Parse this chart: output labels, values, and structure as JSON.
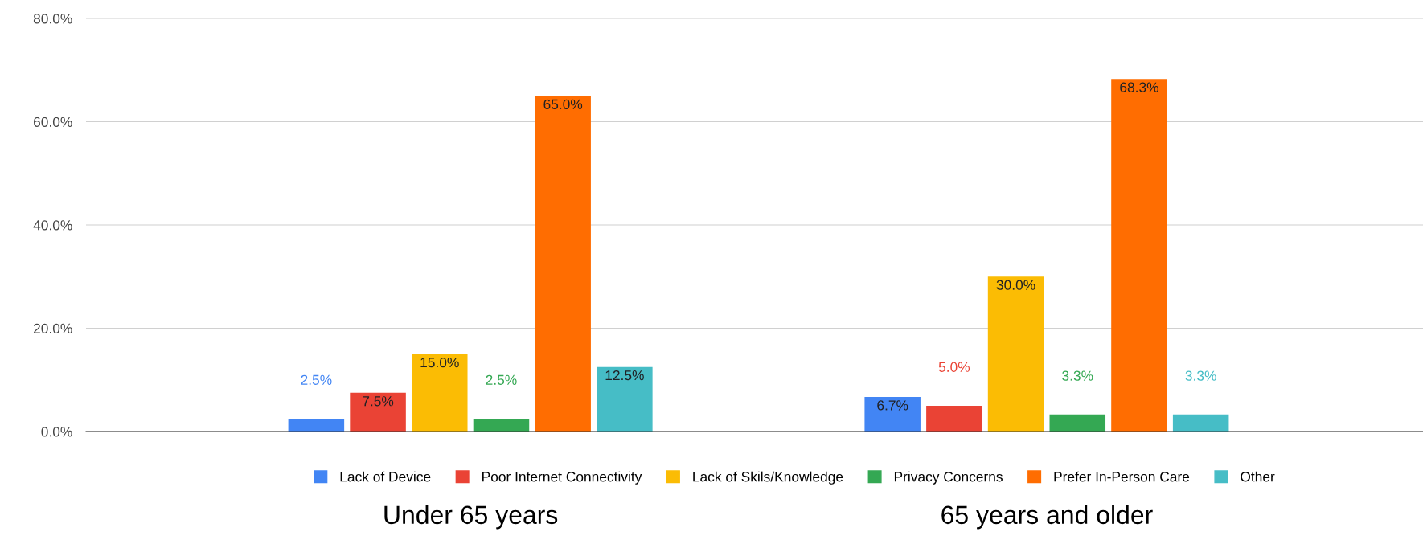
{
  "chart_data": {
    "type": "bar",
    "categories": [
      "Under 65 years",
      "65 years and older"
    ],
    "series": [
      {
        "name": "Lack of Device",
        "color": "#4285f4",
        "values": [
          2.5,
          6.7
        ],
        "value_labels": [
          "2.5%",
          "6.7%"
        ]
      },
      {
        "name": "Poor Internet Connectivity",
        "color": "#ea4335",
        "values": [
          7.5,
          5.0
        ],
        "value_labels": [
          "7.5%",
          "5.0%"
        ]
      },
      {
        "name": "Lack of Skils/Knowledge",
        "color": "#fbbc04",
        "values": [
          15.0,
          30.0
        ],
        "value_labels": [
          "15.0%",
          "30.0%"
        ]
      },
      {
        "name": "Privacy Concerns",
        "color": "#34a853",
        "values": [
          2.5,
          3.3
        ],
        "value_labels": [
          "2.5%",
          "3.3%"
        ]
      },
      {
        "name": "Prefer In-Person Care",
        "color": "#ff6d01",
        "values": [
          65.0,
          68.3
        ],
        "value_labels": [
          "65.0%",
          "68.3%"
        ]
      },
      {
        "name": "Other",
        "color": "#46bdc6",
        "values": [
          12.5,
          3.3
        ],
        "value_labels": [
          "12.5%",
          "3.3%"
        ]
      }
    ],
    "ylim": [
      0,
      80
    ],
    "yticks": [
      {
        "value": 0,
        "label": "0.0%"
      },
      {
        "value": 20,
        "label": "20.0%"
      },
      {
        "value": 40,
        "label": "40.0%"
      },
      {
        "value": 60,
        "label": "60.0%"
      },
      {
        "value": 80,
        "label": "80.0%"
      }
    ],
    "grid": "y",
    "legend": "bottom"
  }
}
